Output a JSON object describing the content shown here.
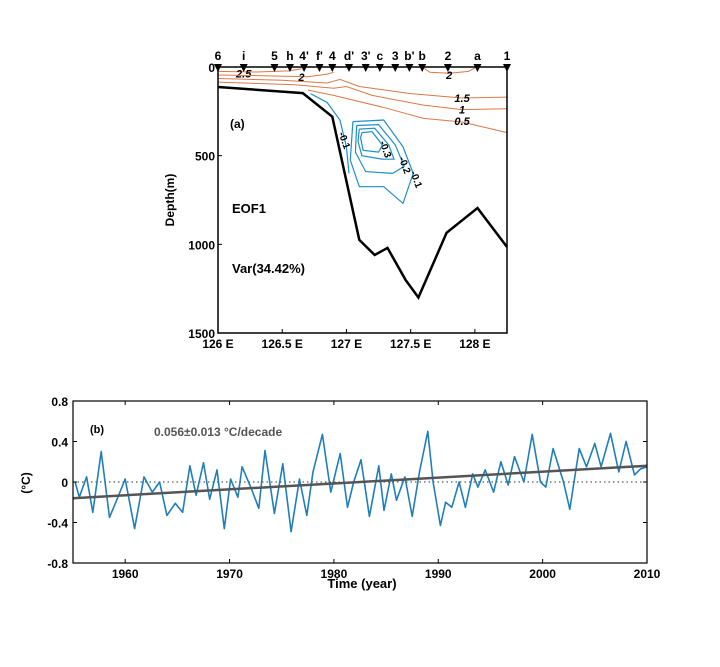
{
  "chart_data": [
    {
      "type": "contour",
      "panel_label": "(a)",
      "annotation_mode": "EOF1",
      "annotation_variance": "Var(34.42%)",
      "ylabel": "Depth(m)",
      "xlim": [
        126,
        128.25
      ],
      "ylim": [
        0,
        1500
      ],
      "y_inverted": true,
      "xticks": [
        126,
        126.5,
        127,
        127.5,
        128
      ],
      "xtick_labels": [
        "126 E",
        "126.5 E",
        "127 E",
        "127.5 E",
        "128 E"
      ],
      "yticks": [
        0,
        500,
        1000,
        1500
      ],
      "ytick_labels": [
        "0",
        "500",
        "1000",
        "1500"
      ],
      "stations": [
        {
          "label": "6",
          "lon": 126.0
        },
        {
          "label": "i",
          "lon": 126.2
        },
        {
          "label": "5",
          "lon": 126.44
        },
        {
          "label": "h",
          "lon": 126.56
        },
        {
          "label": "4'",
          "lon": 126.67
        },
        {
          "label": "f'",
          "lon": 126.79
        },
        {
          "label": "4",
          "lon": 126.89
        },
        {
          "label": "d'",
          "lon": 127.02
        },
        {
          "label": "3'",
          "lon": 127.15
        },
        {
          "label": "c",
          "lon": 127.26
        },
        {
          "label": "3",
          "lon": 127.38
        },
        {
          "label": "b'",
          "lon": 127.49
        },
        {
          "label": "b",
          "lon": 127.59
        },
        {
          "label": "2",
          "lon": 127.79
        },
        {
          "label": "a",
          "lon": 128.02
        },
        {
          "label": "1",
          "lon": 128.25
        }
      ],
      "bathymetry": [
        [
          126.0,
          113
        ],
        [
          126.66,
          147
        ],
        [
          126.89,
          280
        ],
        [
          127.1,
          975
        ],
        [
          127.22,
          1060
        ],
        [
          127.32,
          1020
        ],
        [
          127.46,
          1200
        ],
        [
          127.56,
          1300
        ],
        [
          127.78,
          935
        ],
        [
          128.02,
          795
        ],
        [
          128.25,
          1015
        ]
      ],
      "colors": {
        "positive": "#d9794a",
        "negative": "#1f8fc4",
        "bathymetry": "#000000"
      },
      "positive_contours": [
        {
          "level": "2.5",
          "label_at": [
            126.2,
            38
          ],
          "points": [
            [
              126.0,
              25
            ],
            [
              126.3,
              28
            ],
            [
              126.55,
              22
            ],
            [
              126.65,
              10
            ]
          ]
        },
        {
          "level": "2",
          "label_at": [
            126.65,
            55
          ],
          "points": [
            [
              126.0,
              45
            ],
            [
              126.4,
              50
            ],
            [
              126.7,
              55
            ],
            [
              126.85,
              40
            ],
            [
              126.9,
              30
            ]
          ]
        },
        {
          "level": "2",
          "label_at": [
            127.8,
            45
          ],
          "points": [
            [
              127.6,
              5
            ],
            [
              127.65,
              30
            ],
            [
              127.8,
              35
            ],
            [
              127.95,
              25
            ],
            [
              128.0,
              5
            ]
          ]
        },
        {
          "level": "1.5",
          "label_at": [
            127.9,
            175
          ],
          "points": [
            [
              126.0,
              65
            ],
            [
              126.5,
              75
            ],
            [
              126.85,
              90
            ],
            [
              126.95,
              70
            ],
            [
              127.1,
              110
            ],
            [
              127.5,
              150
            ],
            [
              127.9,
              175
            ],
            [
              128.25,
              170
            ]
          ]
        },
        {
          "level": "1",
          "label_at": [
            127.9,
            240
          ],
          "points": [
            [
              126.0,
              85
            ],
            [
              126.6,
              100
            ],
            [
              126.9,
              120
            ],
            [
              127.0,
              110
            ],
            [
              127.2,
              160
            ],
            [
              127.6,
              215
            ],
            [
              127.9,
              240
            ],
            [
              128.25,
              235
            ]
          ]
        },
        {
          "level": "0.5",
          "label_at": [
            127.9,
            305
          ],
          "points": [
            [
              126.7,
              130
            ],
            [
              126.9,
              160
            ],
            [
              127.3,
              230
            ],
            [
              127.6,
              290
            ],
            [
              127.9,
              310
            ],
            [
              128.25,
              370
            ]
          ]
        }
      ],
      "negative_contours": [
        {
          "level": "-0.1",
          "label_at": [
            127.52,
            640
          ],
          "points": [
            [
              127.05,
              308
            ],
            [
              127.29,
              299
            ],
            [
              127.44,
              450
            ],
            [
              127.52,
              600
            ],
            [
              127.44,
              769
            ],
            [
              127.29,
              675
            ],
            [
              127.1,
              675
            ],
            [
              127.03,
              525
            ],
            [
              127.05,
              308
            ]
          ]
        },
        {
          "level": "-0.2",
          "label_at": [
            127.43,
            560
          ],
          "points": [
            [
              127.08,
              330
            ],
            [
              127.25,
              325
            ],
            [
              127.38,
              440
            ],
            [
              127.45,
              560
            ],
            [
              127.36,
              600
            ],
            [
              127.15,
              590
            ],
            [
              127.07,
              480
            ],
            [
              127.08,
              330
            ]
          ]
        },
        {
          "level": "-0.3",
          "label_at": [
            127.28,
            470
          ],
          "points": [
            [
              127.1,
              350
            ],
            [
              127.22,
              345
            ],
            [
              127.33,
              440
            ],
            [
              127.37,
              520
            ],
            [
              127.28,
              520
            ],
            [
              127.12,
              500
            ],
            [
              127.09,
              420
            ],
            [
              127.1,
              350
            ]
          ]
        },
        {
          "level": "",
          "label_at": null,
          "points": [
            [
              127.12,
              370
            ],
            [
              127.2,
              365
            ],
            [
              127.28,
              440
            ],
            [
              127.25,
              480
            ],
            [
              127.13,
              470
            ],
            [
              127.11,
              400
            ],
            [
              127.12,
              370
            ]
          ]
        },
        {
          "level": "-0.1",
          "label_at": [
            126.96,
            420
          ],
          "points": [
            [
              126.72,
              150
            ],
            [
              126.85,
              200
            ],
            [
              126.95,
              300
            ],
            [
              127.0,
              450
            ],
            [
              127.02,
              600
            ]
          ]
        }
      ]
    },
    {
      "type": "line",
      "panel_label": "(b)",
      "trend_annotation": "0.056±0.013  °C/decade",
      "xlabel": "Time (year)",
      "ylabel": "(°C)",
      "xlim": [
        1955,
        2010
      ],
      "ylim": [
        -0.8,
        0.8
      ],
      "xticks": [
        1960,
        1970,
        1980,
        1990,
        2000,
        2010
      ],
      "yticks": [
        0.8,
        0.4,
        0,
        -0.4,
        -0.8
      ],
      "ytick_labels": [
        "0.8",
        "0.4",
        "0",
        "-0.4",
        "-0.8"
      ],
      "zero_line": "dotted",
      "colors": {
        "series": "#1f7fb8",
        "trend": "#555555"
      },
      "series": {
        "x": [
          1955.2,
          1955.6,
          1956.3,
          1956.9,
          1957.7,
          1958.5,
          1959.3,
          1960.0,
          1960.9,
          1961.8,
          1962.6,
          1963.3,
          1964.0,
          1964.8,
          1965.5,
          1966.2,
          1966.8,
          1967.5,
          1968.1,
          1968.8,
          1969.5,
          1970.1,
          1970.8,
          1971.2,
          1972.1,
          1972.8,
          1973.4,
          1974.3,
          1975.1,
          1975.9,
          1976.7,
          1977.4,
          1978.0,
          1978.9,
          1979.7,
          1980.6,
          1981.3,
          1981.9,
          1982.6,
          1983.4,
          1984.3,
          1984.8,
          1985.5,
          1986.0,
          1986.8,
          1987.5,
          1988.2,
          1989.0,
          1989.5,
          1990.2,
          1990.7,
          1991.3,
          1992.0,
          1992.6,
          1993.3,
          1993.8,
          1994.5,
          1995.3,
          1996.0,
          1996.7,
          1997.3,
          1998.2,
          1999.0,
          1999.8,
          2000.3,
          2001.0,
          2002.0,
          2002.6,
          2003.5,
          2004.2,
          2005.0,
          2005.6,
          2006.5,
          2007.3,
          2008.0,
          2008.8,
          2009.4,
          2010.0
        ],
        "y": [
          0.0,
          -0.15,
          0.05,
          -0.3,
          0.3,
          -0.35,
          -0.15,
          0.03,
          -0.46,
          0.05,
          -0.1,
          0.0,
          -0.33,
          -0.21,
          -0.3,
          0.16,
          -0.13,
          0.19,
          -0.17,
          0.12,
          -0.46,
          0.03,
          -0.15,
          0.15,
          -0.07,
          -0.26,
          0.31,
          -0.31,
          0.18,
          -0.49,
          0.03,
          -0.33,
          0.1,
          0.47,
          -0.1,
          0.28,
          -0.25,
          0.0,
          0.22,
          -0.34,
          0.16,
          -0.28,
          0.08,
          -0.18,
          0.05,
          -0.34,
          0.1,
          0.5,
          0.0,
          -0.43,
          -0.2,
          -0.25,
          0.0,
          -0.25,
          0.08,
          -0.05,
          0.12,
          -0.1,
          0.2,
          -0.03,
          0.25,
          0.0,
          0.47,
          0.0,
          -0.05,
          0.33,
          0.0,
          -0.27,
          0.33,
          0.15,
          0.38,
          0.15,
          0.48,
          0.1,
          0.4,
          0.07,
          0.13,
          0.15
        ]
      },
      "trend": {
        "x": [
          1955,
          2010
        ],
        "y": [
          -0.16,
          0.16
        ]
      }
    }
  ]
}
